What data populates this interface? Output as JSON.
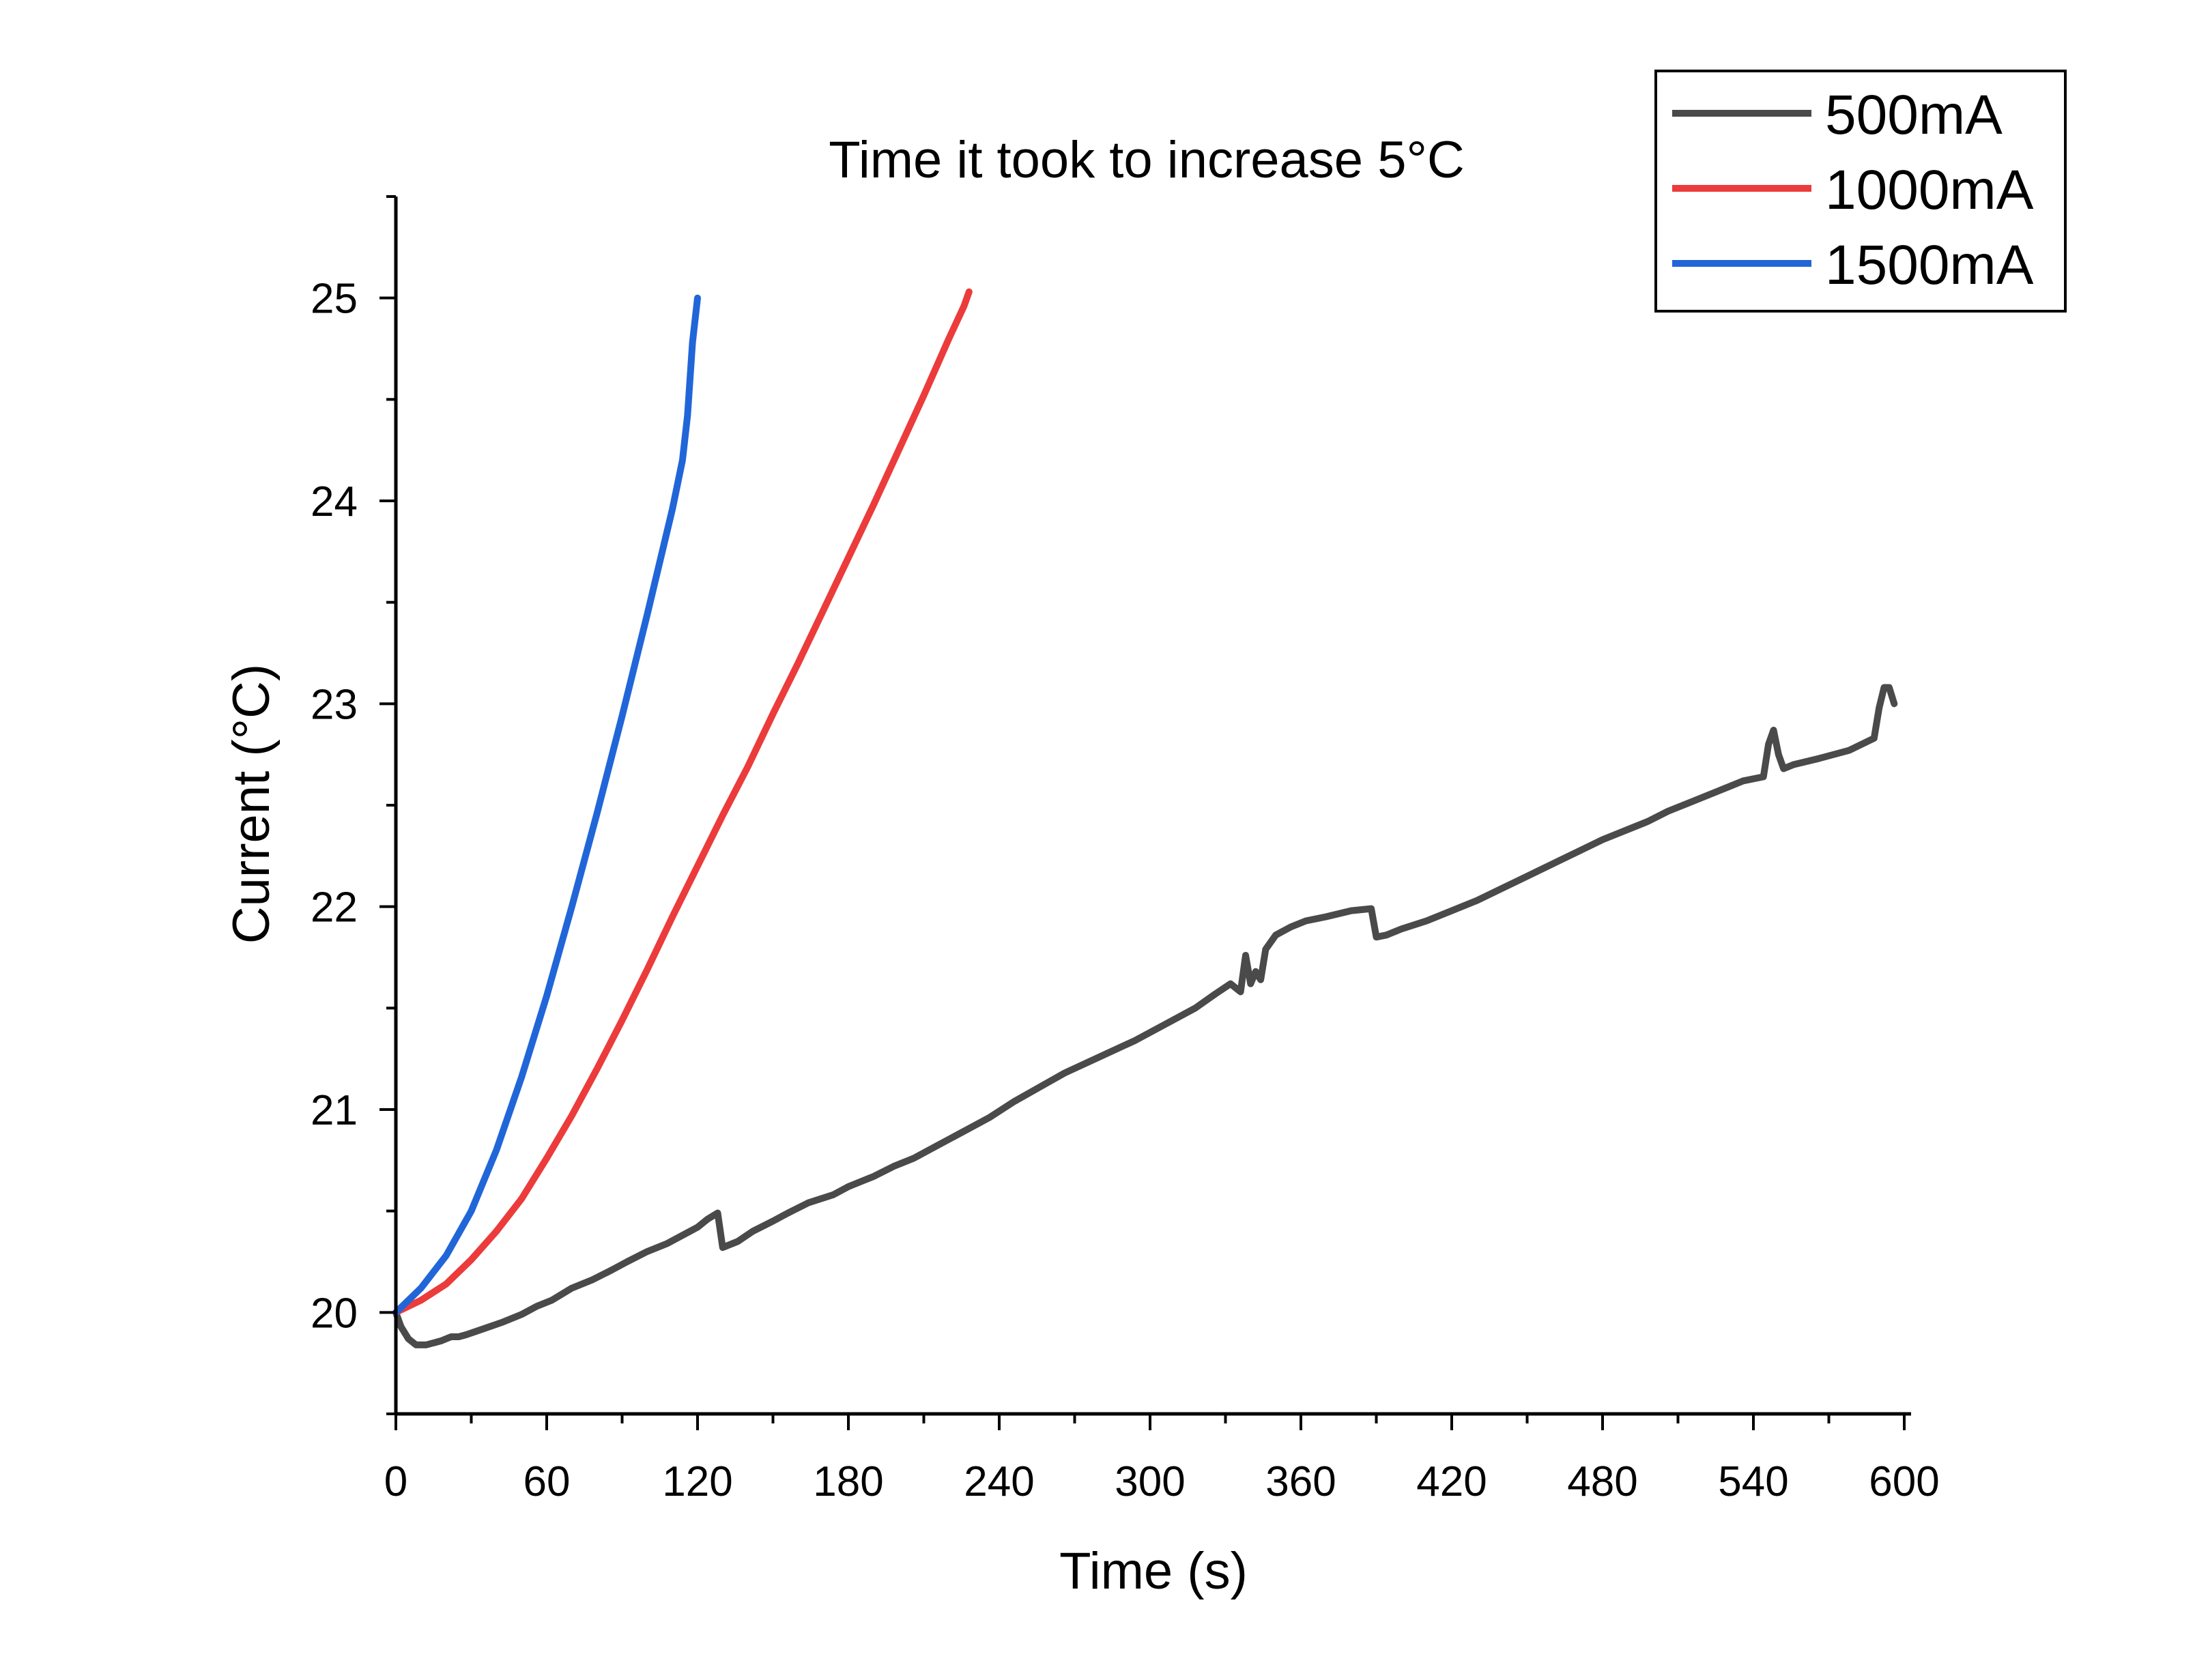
{
  "chart_data": {
    "type": "line",
    "title": "Time it took to increase 5°C",
    "xlabel": "Time (s)",
    "ylabel": "Current (°C)",
    "xlim": [
      0,
      600
    ],
    "ylim": [
      19.5,
      25.5
    ],
    "xticks": [
      0,
      60,
      120,
      180,
      240,
      300,
      360,
      420,
      480,
      540,
      600
    ],
    "xtick_labels": [
      "0",
      "60",
      "120",
      "180",
      "240",
      "300",
      "360",
      "420",
      "480",
      "540",
      "600"
    ],
    "yticks": [
      20,
      21,
      22,
      23,
      24,
      25
    ],
    "ytick_labels": [
      "20",
      "21",
      "22",
      "23",
      "24",
      "25"
    ],
    "grid": false,
    "legend_position": "top-right",
    "series": [
      {
        "name": "500mA",
        "color": "#4a4a4a",
        "x": [
          0,
          2,
          5,
          8,
          12,
          18,
          22,
          25,
          28,
          35,
          42,
          50,
          56,
          62,
          70,
          78,
          86,
          92,
          100,
          108,
          114,
          120,
          124,
          128,
          130,
          136,
          142,
          150,
          156,
          164,
          174,
          180,
          190,
          198,
          206,
          215,
          224,
          236,
          246,
          256,
          266,
          280,
          294,
          306,
          318,
          326,
          332,
          336,
          338,
          340,
          342,
          344,
          346,
          350,
          356,
          362,
          370,
          380,
          388,
          390,
          394,
          400,
          410,
          420,
          430,
          440,
          450,
          460,
          470,
          480,
          490,
          498,
          506,
          516,
          526,
          536,
          544,
          546,
          548,
          550,
          552,
          556,
          566,
          578,
          588,
          590,
          592,
          594,
          596
        ],
        "y": [
          20.0,
          19.93,
          19.87,
          19.84,
          19.84,
          19.86,
          19.88,
          19.88,
          19.89,
          19.92,
          19.95,
          19.99,
          20.03,
          20.06,
          20.12,
          20.16,
          20.21,
          20.25,
          20.3,
          20.34,
          20.38,
          20.42,
          20.46,
          20.49,
          20.32,
          20.35,
          20.4,
          20.45,
          20.49,
          20.54,
          20.58,
          20.62,
          20.67,
          20.72,
          20.76,
          20.82,
          20.88,
          20.96,
          21.04,
          21.11,
          21.18,
          21.26,
          21.34,
          21.42,
          21.5,
          21.57,
          21.62,
          21.58,
          21.76,
          21.62,
          21.68,
          21.64,
          21.79,
          21.86,
          21.9,
          21.93,
          21.95,
          21.98,
          21.99,
          21.85,
          21.86,
          21.89,
          21.93,
          21.98,
          22.03,
          22.09,
          22.15,
          22.21,
          22.27,
          22.33,
          22.38,
          22.42,
          22.47,
          22.52,
          22.57,
          22.62,
          22.64,
          22.8,
          22.87,
          22.75,
          22.68,
          22.7,
          22.73,
          22.77,
          22.83,
          22.98,
          23.08,
          23.08,
          23.0
        ]
      },
      {
        "name": "1000mA",
        "color": "#ec3b3b",
        "x": [
          0,
          10,
          20,
          30,
          40,
          50,
          60,
          70,
          80,
          90,
          100,
          110,
          120,
          130,
          140,
          150,
          160,
          170,
          180,
          190,
          200,
          210,
          220,
          226,
          228
        ],
        "y": [
          20.0,
          20.06,
          20.14,
          20.26,
          20.4,
          20.56,
          20.76,
          20.97,
          21.2,
          21.44,
          21.69,
          21.95,
          22.2,
          22.45,
          22.69,
          22.95,
          23.2,
          23.46,
          23.72,
          23.98,
          24.25,
          24.52,
          24.8,
          24.96,
          25.03
        ]
      },
      {
        "name": "1500mA",
        "color": "#2166d8",
        "x": [
          0,
          10,
          20,
          30,
          40,
          50,
          60,
          70,
          80,
          90,
          100,
          110,
          114,
          116,
          118,
          120
        ],
        "y": [
          20.0,
          20.12,
          20.28,
          20.5,
          20.8,
          21.16,
          21.56,
          22.0,
          22.46,
          22.94,
          23.44,
          23.96,
          24.2,
          24.42,
          24.78,
          25.0
        ]
      }
    ]
  }
}
